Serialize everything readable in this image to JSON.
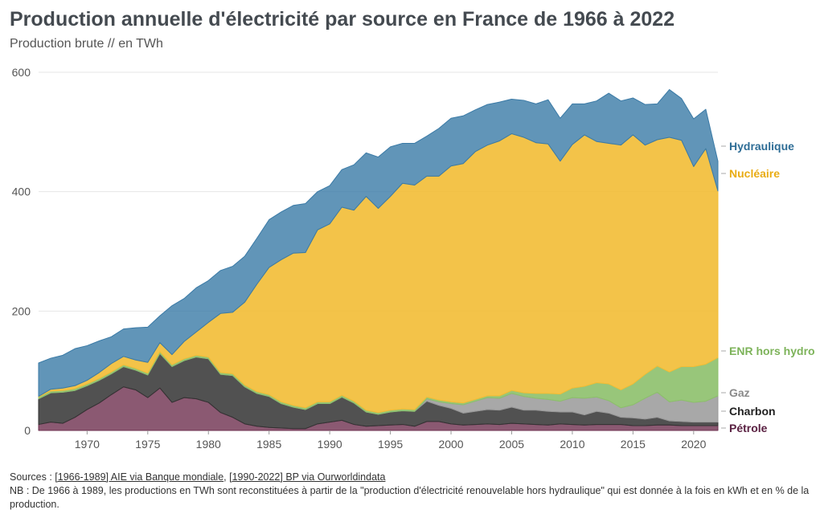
{
  "title": "Production annuelle d'électricité par source en France de 1966 à 2022",
  "subtitle": "Production brute // en TWh",
  "footer": {
    "sources_prefix": "Sources : ",
    "link1": "[1966-1989] AIE via Banque mondiale",
    "sep": ", ",
    "link2": "[1990-2022] BP via Ourworldindata",
    "note": "NB : De 1966 à 1989, les productions en TWh sont reconstituées à partir de la \"production d'électricité renouvelable hors hydraulique\" qui est donnée à la fois en kWh et en % de la production."
  },
  "chart_data": {
    "type": "area",
    "stacked": true,
    "x": [
      1966,
      1967,
      1968,
      1969,
      1970,
      1971,
      1972,
      1973,
      1974,
      1975,
      1976,
      1977,
      1978,
      1979,
      1980,
      1981,
      1982,
      1983,
      1984,
      1985,
      1986,
      1987,
      1988,
      1989,
      1990,
      1991,
      1992,
      1993,
      1994,
      1995,
      1996,
      1997,
      1998,
      1999,
      2000,
      2001,
      2002,
      2003,
      2004,
      2005,
      2006,
      2007,
      2008,
      2009,
      2010,
      2011,
      2012,
      2013,
      2014,
      2015,
      2016,
      2017,
      2018,
      2019,
      2020,
      2021,
      2022
    ],
    "xlim": [
      1966,
      2022
    ],
    "ylim": [
      0,
      600
    ],
    "yticks": [
      0,
      200,
      400,
      600
    ],
    "xticks": [
      1970,
      1975,
      1980,
      1985,
      1990,
      1995,
      2000,
      2005,
      2010,
      2015,
      2020
    ],
    "grid": true,
    "legend": "right-end-labels",
    "series": [
      {
        "name": "Pétrole",
        "color": "#6e2f4f",
        "opacity": 0.8,
        "values": [
          10,
          14,
          12,
          22,
          35,
          46,
          60,
          73,
          68,
          55,
          71,
          47,
          55,
          53,
          47,
          30,
          22,
          11,
          7,
          5,
          4,
          3,
          3,
          11,
          14,
          17,
          10,
          7,
          8,
          9,
          10,
          7,
          15,
          15,
          11,
          9,
          10,
          11,
          10,
          12,
          11,
          10,
          9,
          11,
          10,
          9,
          10,
          10,
          10,
          8,
          8,
          9,
          9,
          8,
          8,
          8,
          8
        ]
      },
      {
        "name": "Charbon",
        "color": "#333333",
        "opacity": 0.85,
        "values": [
          43,
          49,
          52,
          45,
          40,
          38,
          35,
          34,
          33,
          38,
          58,
          60,
          62,
          70,
          73,
          64,
          70,
          62,
          55,
          52,
          41,
          36,
          32,
          34,
          31,
          39,
          36,
          24,
          19,
          22,
          23,
          25,
          34,
          27,
          26,
          20,
          22,
          24,
          24,
          27,
          23,
          24,
          23,
          20,
          21,
          17,
          22,
          19,
          12,
          13,
          11,
          13,
          7,
          7,
          6,
          6,
          6
        ]
      },
      {
        "name": "Gaz",
        "color": "#999999",
        "opacity": 0.85,
        "values": [
          0,
          0,
          0,
          0,
          0,
          0,
          0,
          0,
          0,
          0,
          0,
          0,
          0,
          0,
          0,
          0,
          0,
          0,
          0,
          0,
          0,
          0,
          0,
          0,
          0,
          0,
          0,
          0,
          0,
          0,
          0,
          0,
          4,
          6,
          8,
          14,
          17,
          20,
          20,
          23,
          23,
          20,
          20,
          18,
          24,
          28,
          24,
          21,
          16,
          22,
          35,
          42,
          32,
          36,
          33,
          35,
          44
        ]
      },
      {
        "name": "ENR hors hydro",
        "color": "#8dc06b",
        "opacity": 0.9,
        "values": [
          3,
          3,
          3,
          3,
          3,
          3,
          3,
          3,
          3,
          3,
          3,
          3,
          3,
          3,
          3,
          3,
          3,
          3,
          3,
          3,
          3,
          3,
          3,
          3,
          3,
          3,
          3,
          3,
          3,
          3,
          3,
          3,
          3,
          3,
          3,
          3,
          3,
          3,
          4,
          5,
          6,
          8,
          10,
          12,
          16,
          20,
          24,
          28,
          30,
          35,
          40,
          44,
          50,
          56,
          60,
          62,
          64
        ]
      },
      {
        "name": "Nucléaire",
        "color": "#f2bd35",
        "opacity": 0.9,
        "values": [
          1,
          3,
          4,
          5,
          6,
          10,
          14,
          14,
          14,
          18,
          15,
          17,
          29,
          39,
          58,
          99,
          103,
          139,
          180,
          213,
          238,
          255,
          260,
          288,
          298,
          315,
          320,
          358,
          342,
          358,
          378,
          376,
          370,
          375,
          395,
          401,
          415,
          420,
          427,
          430,
          428,
          420,
          418,
          390,
          408,
          421,
          404,
          403,
          410,
          417,
          384,
          379,
          393,
          379,
          335,
          361,
          279
        ]
      },
      {
        "name": "Hydraulique",
        "color": "#3a7aa6",
        "opacity": 0.8,
        "values": [
          56,
          52,
          55,
          62,
          58,
          53,
          45,
          46,
          54,
          59,
          45,
          82,
          72,
          74,
          70,
          72,
          77,
          77,
          77,
          80,
          80,
          80,
          82,
          64,
          64,
          63,
          76,
          73,
          86,
          83,
          67,
          70,
          67,
          80,
          80,
          80,
          70,
          68,
          65,
          58,
          62,
          65,
          74,
          72,
          68,
          52,
          68,
          84,
          74,
          62,
          68,
          60,
          80,
          70,
          80,
          66,
          50
        ]
      }
    ]
  }
}
